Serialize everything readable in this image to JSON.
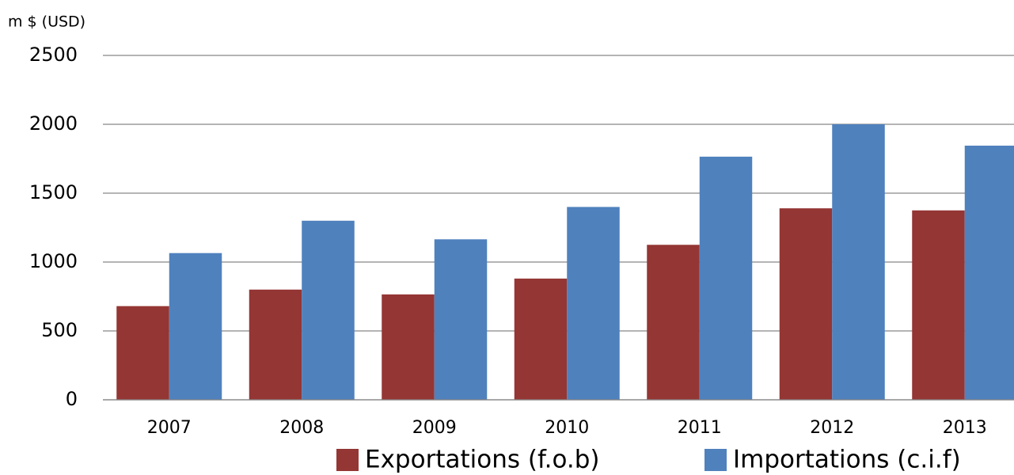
{
  "chart_data": {
    "type": "bar",
    "y_axis_label": "m $ (USD)",
    "categories": [
      "2007",
      "2008",
      "2009",
      "2010",
      "2011",
      "2012",
      "2013"
    ],
    "series": [
      {
        "name": "Exportations (f.o.b)",
        "color": "#943634",
        "values": [
          680,
          800,
          765,
          880,
          1125,
          1390,
          1375
        ]
      },
      {
        "name": "Importations (c.i.f)",
        "color": "#4f81bd",
        "values": [
          1065,
          1300,
          1165,
          1400,
          1765,
          2000,
          1845
        ]
      }
    ],
    "ylim": [
      0,
      2500
    ],
    "yticks": [
      0,
      500,
      1000,
      1500,
      2000,
      2500
    ],
    "grid": true,
    "legend": "bottom"
  }
}
